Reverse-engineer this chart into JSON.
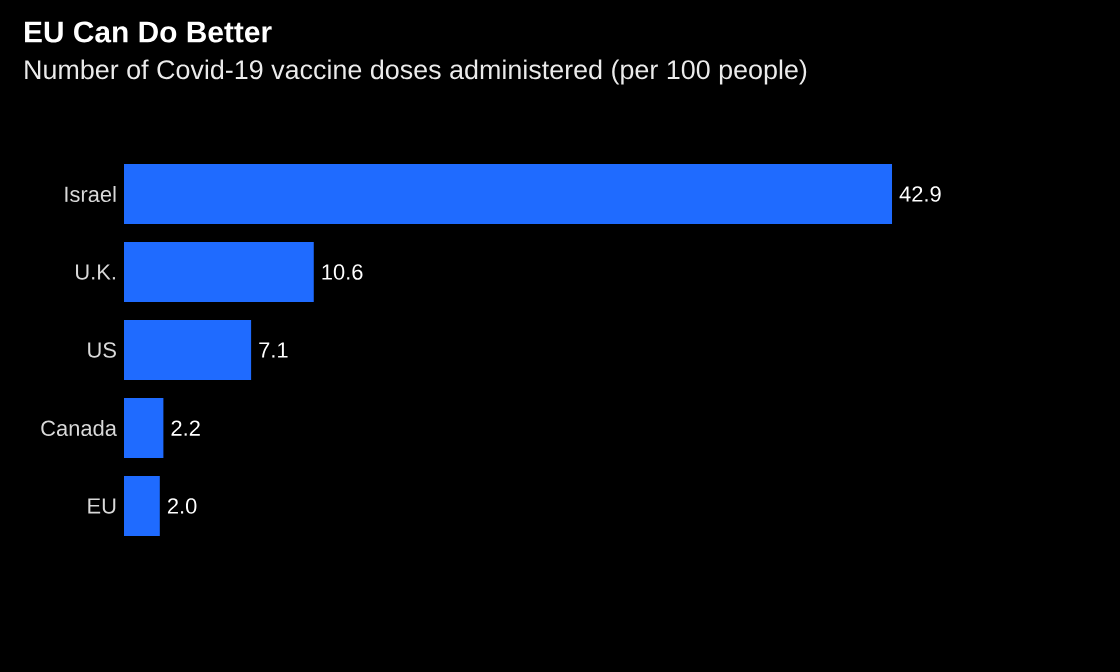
{
  "chart_data": {
    "type": "bar",
    "orientation": "horizontal",
    "title": "EU Can Do Better",
    "subtitle": "Number of Covid-19 vaccine doses administered (per 100 people)",
    "categories": [
      "Israel",
      "U.K.",
      "US",
      "Canada",
      "EU"
    ],
    "values": [
      42.9,
      10.6,
      7.1,
      2.2,
      2.0
    ],
    "color": "#1f6bff",
    "value_labels": [
      "42.9",
      "10.6",
      "7.1",
      "2.2",
      "2.0"
    ]
  }
}
